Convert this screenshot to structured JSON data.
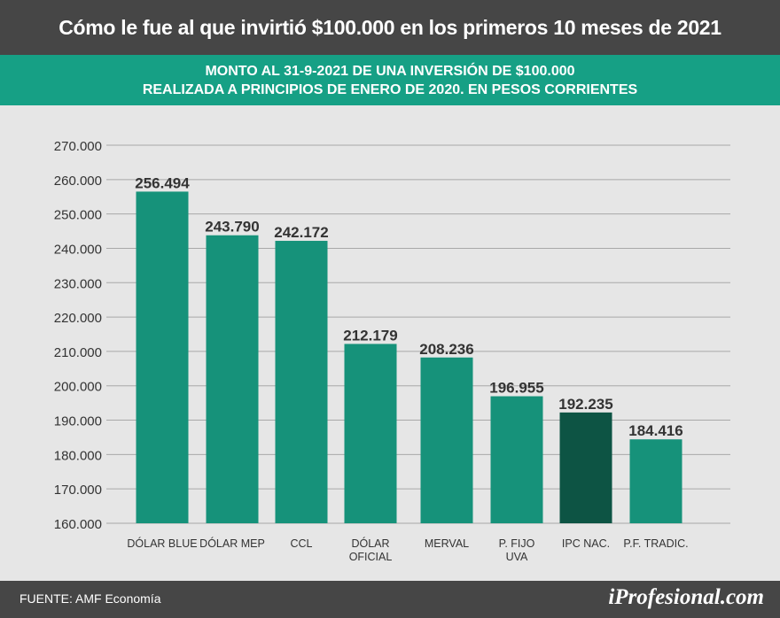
{
  "header": {
    "title": "Cómo le fue al que invirtió $100.000 en los primeros 10 meses de 2021",
    "subtitle_line1": "MONTO AL 31-9-2021 DE UNA INVERSIÓN DE $100.000",
    "subtitle_line2": "REALIZADA A PRINCIPIOS DE ENERO DE 2020. EN PESOS CORRIENTES"
  },
  "footer": {
    "source": "FUENTE: AMF Economía",
    "logo": "iProfesional.com"
  },
  "colors": {
    "bar": "#16927a",
    "highlight_bar": "#0d5444",
    "grid": "#a8a8a8",
    "label": "#333333"
  },
  "chart_data": {
    "type": "bar",
    "title": "MONTO AL 31-9-2021 DE UNA INVERSIÓN DE $100.000 REALIZADA A PRINCIPIOS DE ENERO DE 2020. EN PESOS CORRIENTES",
    "xlabel": "",
    "ylabel": "",
    "ylim": [
      160000,
      270000
    ],
    "yticks": [
      160000,
      170000,
      180000,
      190000,
      200000,
      210000,
      220000,
      230000,
      240000,
      250000,
      260000,
      270000
    ],
    "ytick_labels": [
      "160.000",
      "170.000",
      "180.000",
      "190.000",
      "200.000",
      "210.000",
      "220.000",
      "230.000",
      "240.000",
      "250.000",
      "260.000",
      "270.000"
    ],
    "grid": true,
    "categories": [
      [
        "DÓLAR BLUE"
      ],
      [
        "DÓLAR MEP"
      ],
      [
        "CCL"
      ],
      [
        "DÓLAR",
        "OFICIAL"
      ],
      [
        "MERVAL"
      ],
      [
        "P. FIJO",
        "UVA"
      ],
      [
        "IPC NAC."
      ],
      [
        "P.F. TRADIC."
      ]
    ],
    "values": [
      256494,
      243790,
      242172,
      212179,
      208236,
      196955,
      192235,
      184416
    ],
    "value_labels": [
      "256.494",
      "243.790",
      "242.172",
      "212.179",
      "208.236",
      "196.955",
      "192.235",
      "184.416"
    ],
    "highlight_index": 6
  }
}
